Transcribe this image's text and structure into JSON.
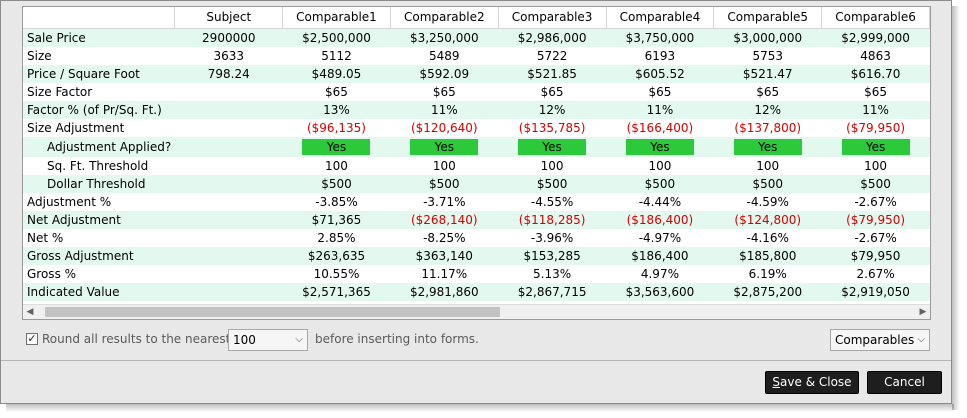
{
  "grid": {
    "columns": [
      "",
      "Subject",
      "Comparable1",
      "Comparable2",
      "Comparable3",
      "Comparable4",
      "Comparable5",
      "Comparable6"
    ],
    "rows": [
      {
        "label": "Sale Price",
        "indent": false,
        "cells": [
          "2900000",
          "$2,500,000",
          "$3,250,000",
          "$2,986,000",
          "$3,750,000",
          "$3,000,000",
          "$2,999,000"
        ]
      },
      {
        "label": "Size",
        "indent": false,
        "cells": [
          "3633",
          "5112",
          "5489",
          "5722",
          "6193",
          "5753",
          "4863"
        ]
      },
      {
        "label": "Price / Square Foot",
        "indent": false,
        "cells": [
          "798.24",
          "$489.05",
          "$592.09",
          "$521.85",
          "$605.52",
          "$521.47",
          "$616.70"
        ]
      },
      {
        "label": "Size Factor",
        "indent": false,
        "cells": [
          "",
          "$65",
          "$65",
          "$65",
          "$65",
          "$65",
          "$65"
        ]
      },
      {
        "label": "Factor % (of Pr/Sq. Ft.)",
        "indent": false,
        "cells": [
          "",
          "13%",
          "11%",
          "12%",
          "11%",
          "12%",
          "11%"
        ]
      },
      {
        "label": "Size Adjustment",
        "indent": false,
        "cells": [
          "",
          "($96,135)",
          "($120,640)",
          "($135,785)",
          "($166,400)",
          "($137,800)",
          "($79,950)"
        ]
      },
      {
        "label": "Adjustment Applied?",
        "indent": true,
        "cells": [
          "",
          "Yes",
          "Yes",
          "Yes",
          "Yes",
          "Yes",
          "Yes"
        ]
      },
      {
        "label": "Sq. Ft. Threshold",
        "indent": true,
        "cells": [
          "",
          "100",
          "100",
          "100",
          "100",
          "100",
          "100"
        ]
      },
      {
        "label": "Dollar Threshold",
        "indent": true,
        "cells": [
          "",
          "$500",
          "$500",
          "$500",
          "$500",
          "$500",
          "$500"
        ]
      },
      {
        "label": "Adjustment %",
        "indent": false,
        "cells": [
          "",
          "-3.85%",
          "-3.71%",
          "-4.55%",
          "-4.44%",
          "-4.59%",
          "-2.67%"
        ]
      },
      {
        "label": "Net Adjustment",
        "indent": false,
        "cells": [
          "",
          "$71,365",
          "($268,140)",
          "($118,285)",
          "($186,400)",
          "($124,800)",
          "($79,950)"
        ]
      },
      {
        "label": "Net %",
        "indent": false,
        "cells": [
          "",
          "2.85%",
          "-8.25%",
          "-3.96%",
          "-4.97%",
          "-4.16%",
          "-2.67%"
        ]
      },
      {
        "label": "Gross Adjustment",
        "indent": false,
        "cells": [
          "",
          "$263,635",
          "$363,140",
          "$153,285",
          "$186,400",
          "$185,800",
          "$79,950"
        ]
      },
      {
        "label": "Gross %",
        "indent": false,
        "cells": [
          "",
          "10.55%",
          "11.17%",
          "5.13%",
          "4.97%",
          "6.19%",
          "2.67%"
        ]
      },
      {
        "label": "Indicated Value",
        "indent": false,
        "cells": [
          "",
          "$2,571,365",
          "$2,981,860",
          "$2,867,715",
          "$3,563,600",
          "$2,875,200",
          "$2,919,050"
        ]
      }
    ]
  },
  "colors": {
    "negative": "#d40000",
    "yes_bg": "#2cc93a",
    "alt_row": "#e3f9ef"
  },
  "footer": {
    "round_checkbox_checked": true,
    "round_label": "Round all results to the nearest",
    "round_value": "100",
    "after_label": "before inserting into forms.",
    "target_value": "Comparables"
  },
  "buttons": {
    "save_close": "Save & Close",
    "cancel": "Cancel"
  }
}
